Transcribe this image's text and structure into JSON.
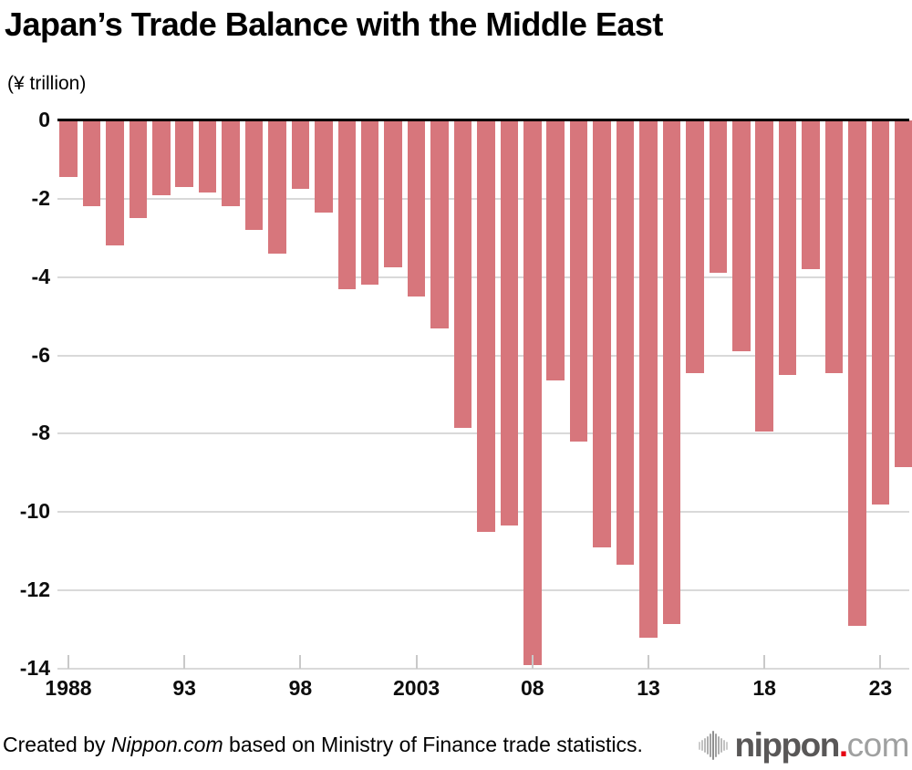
{
  "title": "Japan’s Trade Balance with the Middle East",
  "unit_label": "(¥ trillion)",
  "footer": {
    "prefix": "Created by ",
    "source_name": "Nippon.com",
    "suffix": " based on Ministry of Finance trade statistics."
  },
  "logo": {
    "name": "nippon",
    "dot": ".",
    "tld": "com"
  },
  "colors": {
    "bar": "#d7767c",
    "grid": "#d9d9d9",
    "zero_axis": "#000000",
    "tick": "#c9c9c9",
    "logo_dark_gray": "#595757",
    "logo_red": "#e60012",
    "logo_light_gray": "#9fa0a0",
    "logo_wave_gray": "#8f8f8f"
  },
  "chart_data": {
    "type": "bar",
    "title": "Japan’s Trade Balance with the Middle East",
    "ylabel": "(¥ trillion)",
    "xlabel": "",
    "ylim": [
      -14,
      0
    ],
    "ytick_interval": 2,
    "ytick_labels": [
      "0",
      "-2",
      "-4",
      "-6",
      "-8",
      "-10",
      "-12",
      "-14"
    ],
    "grid": true,
    "legend": "none",
    "x": [
      1988,
      1989,
      1990,
      1991,
      1992,
      1993,
      1994,
      1995,
      1996,
      1997,
      1998,
      1999,
      2000,
      2001,
      2002,
      2003,
      2004,
      2005,
      2006,
      2007,
      2008,
      2009,
      2010,
      2011,
      2012,
      2013,
      2014,
      2015,
      2016,
      2017,
      2018,
      2019,
      2020,
      2021,
      2022,
      2023,
      2024
    ],
    "values": [
      -1.45,
      -2.2,
      -3.2,
      -2.5,
      -1.9,
      -1.7,
      -1.85,
      -2.2,
      -2.8,
      -3.4,
      -1.75,
      -2.35,
      -4.3,
      -4.2,
      -3.75,
      -4.5,
      -5.3,
      -7.85,
      -10.5,
      -10.35,
      -13.9,
      -6.65,
      -8.2,
      -10.9,
      -11.35,
      -13.2,
      -12.85,
      -6.45,
      -3.9,
      -5.9,
      -7.95,
      -6.5,
      -3.8,
      -6.45,
      -12.9,
      -9.8,
      -8.85
    ],
    "xtick_labels": [
      {
        "year": 1988,
        "label": "1988"
      },
      {
        "year": 1993,
        "label": "93"
      },
      {
        "year": 1998,
        "label": "98"
      },
      {
        "year": 2003,
        "label": "2003"
      },
      {
        "year": 2008,
        "label": "08"
      },
      {
        "year": 2013,
        "label": "13"
      },
      {
        "year": 2018,
        "label": "18"
      },
      {
        "year": 2023,
        "label": "23"
      }
    ]
  }
}
